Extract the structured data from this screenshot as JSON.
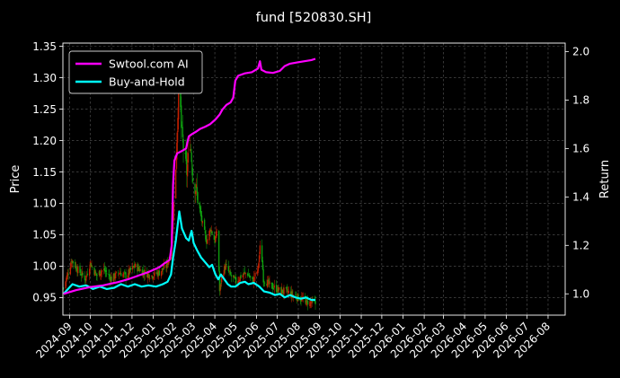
{
  "chart_data": {
    "type": "line",
    "title": "fund [520830.SH]",
    "ylabel_left": "Price",
    "ylabel_right": "Return",
    "x_ticks": [
      "2024-09",
      "2024-10",
      "2024-11",
      "2024-12",
      "2025-01",
      "2025-02",
      "2025-03",
      "2025-04",
      "2025-05",
      "2025-06",
      "2025-07",
      "2025-08",
      "2025-09",
      "2025-10",
      "2025-11",
      "2025-12",
      "2026-01",
      "2026-02",
      "2026-03",
      "2026-04",
      "2026-05",
      "2026-06",
      "2026-07",
      "2026-08"
    ],
    "xlim": [
      "2024-08-22",
      "2026-08-26"
    ],
    "y_left_ticks": [
      "0.95",
      "1.00",
      "1.05",
      "1.10",
      "1.15",
      "1.20",
      "1.25",
      "1.30",
      "1.35"
    ],
    "ylim_left": [
      0.922,
      1.355
    ],
    "y_right_ticks": [
      "1.0",
      "1.2",
      "1.4",
      "1.6",
      "1.8",
      "2.0"
    ],
    "ylim_right": [
      0.912,
      2.035
    ],
    "grid": true,
    "legend_position": "top-left",
    "colors": {
      "strategy": "#ff00ff",
      "buyhold": "#00ffff",
      "candle_up": "#cc2200",
      "candle_down": "#11aa11",
      "background": "#000000"
    },
    "series": [
      {
        "name": "Swtool.com AI",
        "axis": "right",
        "points": [
          [
            "2024-08-23",
            1.0
          ],
          [
            "2024-09-10",
            1.015
          ],
          [
            "2024-10-01",
            1.028
          ],
          [
            "2024-10-20",
            1.035
          ],
          [
            "2024-11-10",
            1.048
          ],
          [
            "2024-11-25",
            1.06
          ],
          [
            "2024-12-10",
            1.075
          ],
          [
            "2024-12-25",
            1.09
          ],
          [
            "2025-01-10",
            1.11
          ],
          [
            "2025-01-17",
            1.125
          ],
          [
            "2025-01-25",
            1.14
          ],
          [
            "2025-01-28",
            1.2
          ],
          [
            "2025-01-30",
            1.45
          ],
          [
            "2025-02-01",
            1.55
          ],
          [
            "2025-02-05",
            1.58
          ],
          [
            "2025-02-12",
            1.59
          ],
          [
            "2025-02-18",
            1.6
          ],
          [
            "2025-02-22",
            1.65
          ],
          [
            "2025-02-27",
            1.66
          ],
          [
            "2025-03-05",
            1.67
          ],
          [
            "2025-03-10",
            1.68
          ],
          [
            "2025-03-18",
            1.69
          ],
          [
            "2025-03-25",
            1.7
          ],
          [
            "2025-04-02",
            1.72
          ],
          [
            "2025-04-08",
            1.74
          ],
          [
            "2025-04-12",
            1.76
          ],
          [
            "2025-04-18",
            1.78
          ],
          [
            "2025-04-24",
            1.79
          ],
          [
            "2025-04-28",
            1.81
          ],
          [
            "2025-05-01",
            1.88
          ],
          [
            "2025-05-05",
            1.9
          ],
          [
            "2025-05-15",
            1.91
          ],
          [
            "2025-05-25",
            1.915
          ],
          [
            "2025-06-03",
            1.93
          ],
          [
            "2025-06-06",
            1.96
          ],
          [
            "2025-06-08",
            1.925
          ],
          [
            "2025-06-15",
            1.915
          ],
          [
            "2025-06-25",
            1.912
          ],
          [
            "2025-07-05",
            1.92
          ],
          [
            "2025-07-12",
            1.94
          ],
          [
            "2025-07-20",
            1.95
          ],
          [
            "2025-07-30",
            1.955
          ],
          [
            "2025-08-10",
            1.96
          ],
          [
            "2025-08-20",
            1.965
          ],
          [
            "2025-08-26",
            1.97
          ]
        ]
      },
      {
        "name": "Buy-and-Hold",
        "axis": "right",
        "points": [
          [
            "2024-08-23",
            1.0
          ],
          [
            "2024-09-05",
            1.04
          ],
          [
            "2024-09-15",
            1.03
          ],
          [
            "2024-09-25",
            1.035
          ],
          [
            "2024-10-05",
            1.02
          ],
          [
            "2024-10-15",
            1.03
          ],
          [
            "2024-10-25",
            1.02
          ],
          [
            "2024-11-05",
            1.025
          ],
          [
            "2024-11-15",
            1.04
          ],
          [
            "2024-11-25",
            1.03
          ],
          [
            "2024-12-05",
            1.04
          ],
          [
            "2024-12-15",
            1.03
          ],
          [
            "2024-12-25",
            1.035
          ],
          [
            "2025-01-05",
            1.03
          ],
          [
            "2025-01-15",
            1.04
          ],
          [
            "2025-01-22",
            1.05
          ],
          [
            "2025-01-27",
            1.08
          ],
          [
            "2025-01-30",
            1.15
          ],
          [
            "2025-02-03",
            1.22
          ],
          [
            "2025-02-08",
            1.34
          ],
          [
            "2025-02-12",
            1.27
          ],
          [
            "2025-02-18",
            1.23
          ],
          [
            "2025-02-22",
            1.22
          ],
          [
            "2025-02-26",
            1.26
          ],
          [
            "2025-03-01",
            1.21
          ],
          [
            "2025-03-06",
            1.18
          ],
          [
            "2025-03-12",
            1.15
          ],
          [
            "2025-03-18",
            1.13
          ],
          [
            "2025-03-24",
            1.11
          ],
          [
            "2025-03-28",
            1.12
          ],
          [
            "2025-04-02",
            1.08
          ],
          [
            "2025-04-06",
            1.06
          ],
          [
            "2025-04-10",
            1.08
          ],
          [
            "2025-04-15",
            1.06
          ],
          [
            "2025-04-20",
            1.04
          ],
          [
            "2025-04-25",
            1.03
          ],
          [
            "2025-05-01",
            1.03
          ],
          [
            "2025-05-08",
            1.045
          ],
          [
            "2025-05-15",
            1.05
          ],
          [
            "2025-05-20",
            1.04
          ],
          [
            "2025-05-28",
            1.045
          ],
          [
            "2025-06-05",
            1.03
          ],
          [
            "2025-06-12",
            1.01
          ],
          [
            "2025-06-20",
            1.005
          ],
          [
            "2025-06-28",
            0.995
          ],
          [
            "2025-07-05",
            1.0
          ],
          [
            "2025-07-12",
            0.985
          ],
          [
            "2025-07-20",
            0.995
          ],
          [
            "2025-07-28",
            0.985
          ],
          [
            "2025-08-05",
            0.98
          ],
          [
            "2025-08-12",
            0.985
          ],
          [
            "2025-08-20",
            0.975
          ],
          [
            "2025-08-26",
            0.975
          ]
        ]
      },
      {
        "name": "",
        "axis": "left",
        "type": "candles",
        "close_points": [
          [
            "2024-08-23",
            0.965
          ],
          [
            "2024-09-04",
            1.01
          ],
          [
            "2024-09-12",
            0.995
          ],
          [
            "2024-09-24",
            0.98
          ],
          [
            "2024-10-01",
            1.005
          ],
          [
            "2024-10-10",
            0.985
          ],
          [
            "2024-10-20",
            0.995
          ],
          [
            "2024-11-01",
            0.98
          ],
          [
            "2024-11-12",
            0.99
          ],
          [
            "2024-11-22",
            0.985
          ],
          [
            "2024-12-05",
            1.0
          ],
          [
            "2024-12-18",
            0.99
          ],
          [
            "2024-12-30",
            0.985
          ],
          [
            "2025-01-10",
            0.99
          ],
          [
            "2025-01-20",
            1.0
          ],
          [
            "2025-01-27",
            1.02
          ],
          [
            "2025-01-30",
            1.08
          ],
          [
            "2025-02-03",
            1.16
          ],
          [
            "2025-02-06",
            1.25
          ],
          [
            "2025-02-08",
            1.3
          ],
          [
            "2025-02-11",
            1.22
          ],
          [
            "2025-02-15",
            1.18
          ],
          [
            "2025-02-19",
            1.15
          ],
          [
            "2025-02-24",
            1.2
          ],
          [
            "2025-02-28",
            1.14
          ],
          [
            "2025-03-05",
            1.12
          ],
          [
            "2025-03-10",
            1.09
          ],
          [
            "2025-03-15",
            1.06
          ],
          [
            "2025-03-20",
            1.04
          ],
          [
            "2025-03-26",
            1.06
          ],
          [
            "2025-04-01",
            1.04
          ],
          [
            "2025-04-05",
            1.06
          ],
          [
            "2025-04-08",
            0.96
          ],
          [
            "2025-04-12",
            0.99
          ],
          [
            "2025-04-17",
            1.0
          ],
          [
            "2025-04-24",
            0.985
          ],
          [
            "2025-05-02",
            0.975
          ],
          [
            "2025-05-10",
            0.985
          ],
          [
            "2025-05-18",
            0.99
          ],
          [
            "2025-05-26",
            0.975
          ],
          [
            "2025-06-03",
            0.995
          ],
          [
            "2025-06-07",
            1.04
          ],
          [
            "2025-06-11",
            0.98
          ],
          [
            "2025-06-20",
            0.97
          ],
          [
            "2025-06-28",
            0.965
          ],
          [
            "2025-07-06",
            0.96
          ],
          [
            "2025-07-14",
            0.96
          ],
          [
            "2025-07-22",
            0.955
          ],
          [
            "2025-08-01",
            0.95
          ],
          [
            "2025-08-10",
            0.945
          ],
          [
            "2025-08-18",
            0.942
          ],
          [
            "2025-08-26",
            0.94
          ]
        ]
      }
    ]
  }
}
